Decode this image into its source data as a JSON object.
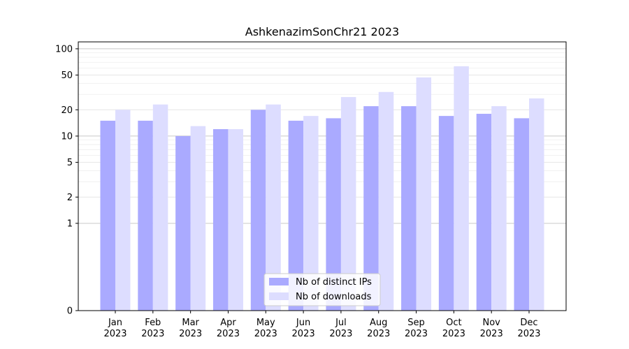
{
  "chart_data": {
    "type": "bar",
    "title": "AshkenazimSonChr21 2023",
    "xlabel": "",
    "ylabel": "",
    "yscale": "symlog",
    "ylim": [
      0,
      120
    ],
    "yticks": [
      0,
      1,
      2,
      5,
      10,
      20,
      50,
      100
    ],
    "ytick_labels": [
      "0",
      "1",
      "2",
      "5",
      "10",
      "20",
      "50",
      "100"
    ],
    "grid": true,
    "legend_position": "bottom-center",
    "categories": [
      "Jan\n2023",
      "Feb\n2023",
      "Mar\n2023",
      "Apr\n2023",
      "May\n2023",
      "Jun\n2023",
      "Jul\n2023",
      "Aug\n2023",
      "Sep\n2023",
      "Oct\n2023",
      "Nov\n2023",
      "Dec\n2023"
    ],
    "category_labels": [
      [
        "Jan",
        "2023"
      ],
      [
        "Feb",
        "2023"
      ],
      [
        "Mar",
        "2023"
      ],
      [
        "Apr",
        "2023"
      ],
      [
        "May",
        "2023"
      ],
      [
        "Jun",
        "2023"
      ],
      [
        "Jul",
        "2023"
      ],
      [
        "Aug",
        "2023"
      ],
      [
        "Sep",
        "2023"
      ],
      [
        "Oct",
        "2023"
      ],
      [
        "Nov",
        "2023"
      ],
      [
        "Dec",
        "2023"
      ]
    ],
    "series": [
      {
        "name": "Nb of distinct IPs",
        "color": "#aaaaff",
        "values": [
          15,
          15,
          10,
          12,
          20,
          15,
          16,
          22,
          22,
          17,
          18,
          16
        ]
      },
      {
        "name": "Nb of downloads",
        "color": "#ddddff",
        "values": [
          20,
          23,
          13,
          12,
          23,
          17,
          28,
          32,
          47,
          63,
          22,
          27
        ]
      }
    ]
  }
}
